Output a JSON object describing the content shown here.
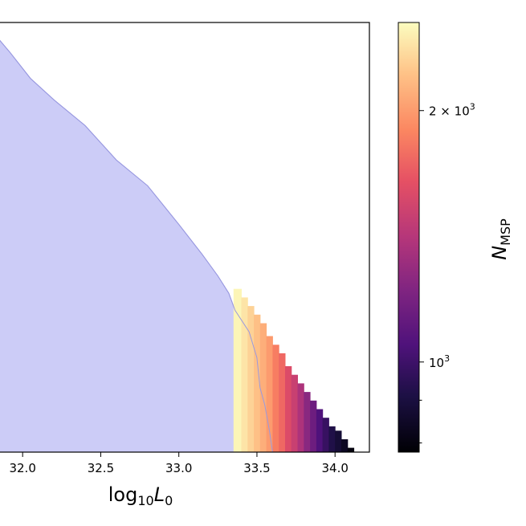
{
  "chart_data": {
    "type": "heatmap",
    "xlabel": "log10L0",
    "xlabel_parts": {
      "base": "log",
      "sub": "10",
      "var": "L",
      "var_sub": "0"
    },
    "x_ticks": [
      "32.0",
      "32.5",
      "33.0",
      "33.5",
      "34.0"
    ],
    "x_tick_values": [
      32.0,
      32.5,
      33.0,
      33.5,
      34.0
    ],
    "xlim": [
      31.85,
      34.22
    ],
    "region_fill_color": "#ccccf7",
    "region_edge_color": "#9999e0",
    "region_boundary": {
      "note_units": "x in log10L0 data units, y as fraction of plot height from bottom",
      "points": [
        [
          31.85,
          0.96
        ],
        [
          31.92,
          0.93
        ],
        [
          32.05,
          0.87
        ],
        [
          32.2,
          0.82
        ],
        [
          32.4,
          0.76
        ],
        [
          32.6,
          0.68
        ],
        [
          32.8,
          0.62
        ],
        [
          33.0,
          0.53
        ],
        [
          33.15,
          0.46
        ],
        [
          33.25,
          0.41
        ],
        [
          33.32,
          0.37
        ],
        [
          33.36,
          0.33
        ],
        [
          33.45,
          0.28
        ],
        [
          33.5,
          0.22
        ],
        [
          33.52,
          0.15
        ],
        [
          33.55,
          0.11
        ],
        [
          33.58,
          0.05
        ],
        [
          33.6,
          0.0
        ]
      ]
    },
    "heatmap_columns": {
      "note_units": "x_left, x_right in log10L0; top as fraction of plot height; value = N_MSP",
      "data": [
        [
          33.35,
          33.4,
          0.38,
          2500
        ],
        [
          33.4,
          33.44,
          0.36,
          2400
        ],
        [
          33.44,
          33.48,
          0.34,
          2300
        ],
        [
          33.48,
          33.52,
          0.32,
          2200
        ],
        [
          33.52,
          33.56,
          0.3,
          2100
        ],
        [
          33.56,
          33.6,
          0.27,
          2000
        ],
        [
          33.6,
          33.64,
          0.25,
          1850
        ],
        [
          33.64,
          33.68,
          0.23,
          1750
        ],
        [
          33.68,
          33.72,
          0.2,
          1600
        ],
        [
          33.72,
          33.76,
          0.18,
          1500
        ],
        [
          33.76,
          33.8,
          0.16,
          1380
        ],
        [
          33.8,
          33.84,
          0.14,
          1250
        ],
        [
          33.84,
          33.88,
          0.12,
          1150
        ],
        [
          33.88,
          33.92,
          0.1,
          1050
        ],
        [
          33.92,
          33.96,
          0.08,
          980
        ],
        [
          33.96,
          34.0,
          0.06,
          920
        ],
        [
          34.0,
          34.04,
          0.05,
          880
        ],
        [
          34.04,
          34.08,
          0.03,
          840
        ],
        [
          34.08,
          34.12,
          0.01,
          800
        ]
      ]
    },
    "colorbar": {
      "label": "NMSP",
      "label_parts": {
        "var": "N",
        "sub": "MSP"
      },
      "colormap": "magma",
      "scale": "log",
      "vmin": 780,
      "vmax": 2550,
      "tick_labels": [
        {
          "value": 2000,
          "base": "2 × 10",
          "exp": "3"
        },
        {
          "value": 1000,
          "base": "10",
          "exp": "3"
        }
      ],
      "minor_tick_values": [
        900,
        800
      ]
    }
  }
}
